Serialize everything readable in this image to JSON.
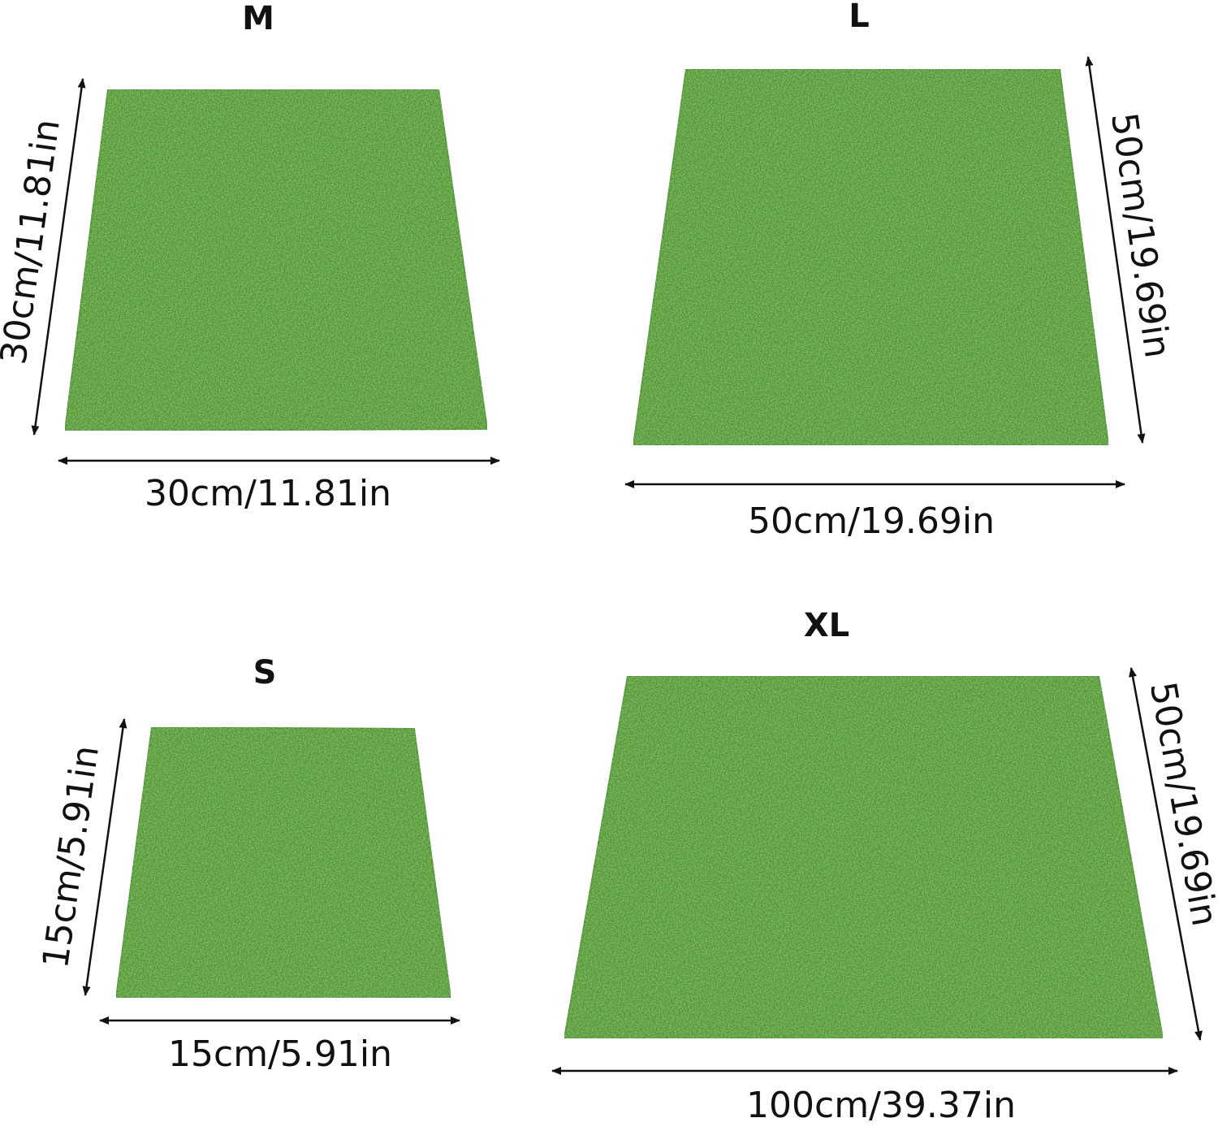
{
  "panels": [
    {
      "size": "M",
      "width": "30cm/11.81in",
      "height": "30cm/11.81in"
    },
    {
      "size": "L",
      "width": "50cm/19.69in",
      "height": "50cm/19.69in"
    },
    {
      "size": "S",
      "width": "15cm/5.91in",
      "height": "15cm/5.91in"
    },
    {
      "size": "XL",
      "width": "100cm/39.37in",
      "height": "50cm/19.69in"
    }
  ]
}
